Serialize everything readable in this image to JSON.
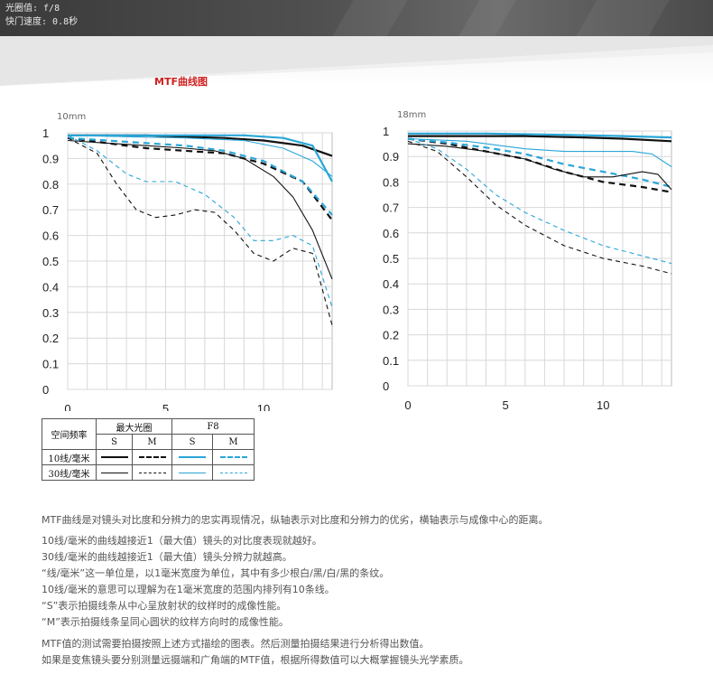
{
  "banner": {
    "aperture_line": "光圈值: f/8",
    "shutter_line": "快门速度: 0.8秒"
  },
  "section_title": "MTF曲线图",
  "colors": {
    "black": "#111111",
    "blue": "#2aa6d8",
    "title_red": "#d02020"
  },
  "chart_data": [
    {
      "type": "line",
      "title": "10mm",
      "xlim": [
        0,
        13.5
      ],
      "ylim": [
        0,
        1
      ],
      "x_ticks": [
        0,
        5,
        10
      ],
      "y_ticks": [
        0,
        0.1,
        0.2,
        0.3,
        0.4,
        0.5,
        0.6,
        0.7,
        0.8,
        0.9,
        1
      ],
      "y_tick_labels": [
        "0",
        "0.1",
        "0.2",
        "0.3",
        "0.4",
        "0.5",
        "0.6",
        "0.7",
        "0.8",
        "0.9",
        "1"
      ],
      "grid": true,
      "series": [
        {
          "color": "#111111",
          "dash": false,
          "width": 2.2,
          "points": [
            [
              0,
              0.99
            ],
            [
              2,
              0.99
            ],
            [
              4,
              0.99
            ],
            [
              6,
              0.985
            ],
            [
              8,
              0.98
            ],
            [
              10,
              0.97
            ],
            [
              12,
              0.95
            ],
            [
              13.5,
              0.91
            ]
          ]
        },
        {
          "color": "#111111",
          "dash": true,
          "width": 2.2,
          "points": [
            [
              0,
              0.98
            ],
            [
              2,
              0.96
            ],
            [
              4,
              0.94
            ],
            [
              6,
              0.93
            ],
            [
              8,
              0.92
            ],
            [
              10,
              0.88
            ],
            [
              12,
              0.81
            ],
            [
              13.5,
              0.66
            ]
          ]
        },
        {
          "color": "#2aa6d8",
          "dash": false,
          "width": 2.2,
          "points": [
            [
              0,
              0.99
            ],
            [
              3,
              0.99
            ],
            [
              6,
              0.99
            ],
            [
              9,
              0.99
            ],
            [
              11,
              0.98
            ],
            [
              12.5,
              0.95
            ],
            [
              13.5,
              0.81
            ]
          ]
        },
        {
          "color": "#2aa6d8",
          "dash": true,
          "width": 2.2,
          "points": [
            [
              0,
              0.98
            ],
            [
              2,
              0.97
            ],
            [
              4,
              0.96
            ],
            [
              6,
              0.95
            ],
            [
              8,
              0.93
            ],
            [
              10,
              0.89
            ],
            [
              12,
              0.81
            ],
            [
              13.5,
              0.68
            ]
          ]
        },
        {
          "color": "#111111",
          "dash": false,
          "width": 1.1,
          "points": [
            [
              0,
              0.97
            ],
            [
              2,
              0.96
            ],
            [
              4,
              0.95
            ],
            [
              6,
              0.94
            ],
            [
              7.5,
              0.93
            ],
            [
              9,
              0.9
            ],
            [
              10.5,
              0.83
            ],
            [
              11.5,
              0.75
            ],
            [
              12.5,
              0.62
            ],
            [
              13.5,
              0.43
            ]
          ]
        },
        {
          "color": "#111111",
          "dash": true,
          "width": 1.1,
          "points": [
            [
              0,
              0.98
            ],
            [
              1.5,
              0.92
            ],
            [
              2.5,
              0.8
            ],
            [
              3.5,
              0.7
            ],
            [
              4.5,
              0.67
            ],
            [
              5.5,
              0.68
            ],
            [
              6.5,
              0.7
            ],
            [
              7.5,
              0.69
            ],
            [
              8.5,
              0.62
            ],
            [
              9.5,
              0.53
            ],
            [
              10.5,
              0.5
            ],
            [
              11.5,
              0.55
            ],
            [
              12.5,
              0.53
            ],
            [
              13.5,
              0.25
            ]
          ]
        },
        {
          "color": "#2aa6d8",
          "dash": false,
          "width": 1.1,
          "points": [
            [
              0,
              0.99
            ],
            [
              3,
              0.985
            ],
            [
              6,
              0.98
            ],
            [
              9,
              0.97
            ],
            [
              11,
              0.94
            ],
            [
              12.5,
              0.89
            ],
            [
              13.5,
              0.83
            ]
          ]
        },
        {
          "color": "#2aa6d8",
          "dash": true,
          "width": 1.1,
          "points": [
            [
              0,
              0.99
            ],
            [
              1.5,
              0.93
            ],
            [
              3,
              0.84
            ],
            [
              4,
              0.81
            ],
            [
              5.5,
              0.81
            ],
            [
              7,
              0.76
            ],
            [
              8.5,
              0.67
            ],
            [
              9.5,
              0.58
            ],
            [
              10.5,
              0.58
            ],
            [
              11.5,
              0.6
            ],
            [
              12.5,
              0.56
            ],
            [
              13.5,
              0.32
            ]
          ]
        }
      ]
    },
    {
      "type": "line",
      "title": "18mm",
      "xlim": [
        0,
        13.5
      ],
      "ylim": [
        0,
        1
      ],
      "x_ticks": [
        0,
        5,
        10
      ],
      "y_ticks": [
        0,
        0.1,
        0.2,
        0.3,
        0.4,
        0.5,
        0.6,
        0.7,
        0.8,
        0.9,
        1
      ],
      "y_tick_labels": [
        "0",
        "0.1",
        "0.2",
        "0.3",
        "0.4",
        "0.5",
        "0.6",
        "0.7",
        "0.8",
        "0.9",
        "1"
      ],
      "grid": true,
      "series": [
        {
          "color": "#111111",
          "dash": false,
          "width": 2.2,
          "points": [
            [
              0,
              0.98
            ],
            [
              3,
              0.98
            ],
            [
              6,
              0.98
            ],
            [
              9,
              0.975
            ],
            [
              11,
              0.97
            ],
            [
              13.5,
              0.96
            ]
          ]
        },
        {
          "color": "#111111",
          "dash": true,
          "width": 2.2,
          "points": [
            [
              0,
              0.97
            ],
            [
              2,
              0.95
            ],
            [
              4,
              0.92
            ],
            [
              6,
              0.89
            ],
            [
              8,
              0.84
            ],
            [
              10,
              0.8
            ],
            [
              12,
              0.78
            ],
            [
              13.5,
              0.76
            ]
          ]
        },
        {
          "color": "#2aa6d8",
          "dash": false,
          "width": 2.2,
          "points": [
            [
              0,
              0.99
            ],
            [
              4,
              0.99
            ],
            [
              8,
              0.985
            ],
            [
              11,
              0.98
            ],
            [
              13.5,
              0.975
            ]
          ]
        },
        {
          "color": "#2aa6d8",
          "dash": true,
          "width": 2.2,
          "points": [
            [
              0,
              0.97
            ],
            [
              2,
              0.955
            ],
            [
              4,
              0.935
            ],
            [
              6,
              0.91
            ],
            [
              8,
              0.87
            ],
            [
              10,
              0.84
            ],
            [
              12,
              0.81
            ],
            [
              13.5,
              0.78
            ]
          ]
        },
        {
          "color": "#111111",
          "dash": false,
          "width": 1.1,
          "points": [
            [
              0,
              0.95
            ],
            [
              2,
              0.94
            ],
            [
              4,
              0.92
            ],
            [
              6,
              0.89
            ],
            [
              7.5,
              0.85
            ],
            [
              9,
              0.82
            ],
            [
              10.5,
              0.82
            ],
            [
              12,
              0.84
            ],
            [
              12.8,
              0.83
            ],
            [
              13.5,
              0.77
            ]
          ]
        },
        {
          "color": "#111111",
          "dash": true,
          "width": 1.1,
          "points": [
            [
              0,
              0.96
            ],
            [
              1.5,
              0.92
            ],
            [
              3,
              0.82
            ],
            [
              4.5,
              0.71
            ],
            [
              6,
              0.63
            ],
            [
              8,
              0.55
            ],
            [
              10,
              0.5
            ],
            [
              12,
              0.47
            ],
            [
              13.5,
              0.44
            ]
          ]
        },
        {
          "color": "#2aa6d8",
          "dash": false,
          "width": 1.1,
          "points": [
            [
              0,
              0.97
            ],
            [
              3,
              0.96
            ],
            [
              6,
              0.93
            ],
            [
              8,
              0.92
            ],
            [
              10,
              0.92
            ],
            [
              11.5,
              0.92
            ],
            [
              12.5,
              0.91
            ],
            [
              13.5,
              0.86
            ]
          ]
        },
        {
          "color": "#2aa6d8",
          "dash": true,
          "width": 1.1,
          "points": [
            [
              0,
              0.97
            ],
            [
              1.5,
              0.93
            ],
            [
              3,
              0.85
            ],
            [
              4.5,
              0.75
            ],
            [
              6,
              0.68
            ],
            [
              8,
              0.61
            ],
            [
              10,
              0.55
            ],
            [
              12,
              0.51
            ],
            [
              13.5,
              0.48
            ]
          ]
        }
      ]
    }
  ],
  "legend": {
    "freq_header": "空间频率",
    "max_aperture": "最大光圈",
    "f8": "F8",
    "s": "S",
    "m": "M",
    "row_10": "10线/毫米",
    "row_30": "30线/毫米"
  },
  "description": [
    "MTF曲线是对镜头对比度和分辨力的忠实再现情况，纵轴表示对比度和分辨力的优劣，横轴表示与成像中心的距离。",
    "10线/毫米的曲线越接近1（最大值）镜头的对比度表现就越好。",
    "30线/毫米的曲线越接近1（最大值）镜头分辨力就越高。",
    "“线/毫米”这一单位是，以1毫米宽度为单位，其中有多少根白/黑/白/黑的条纹。",
    "10线/毫米的意思可以理解为在1毫米宽度的范围内排列有10条线。",
    "“S”表示拍摄线条从中心呈放射状的纹样时的成像性能。",
    "“M”表示拍摄线条呈同心圆状的纹样方向时的成像性能。",
    "MTF值的测试需要拍摄按照上述方式描绘的图表。然后测量拍摄结果进行分析得出数值。",
    "如果是变焦镜头要分别测量远摄端和广角端的MTF值，根据所得数值可以大概掌握镜头光学素质。"
  ]
}
